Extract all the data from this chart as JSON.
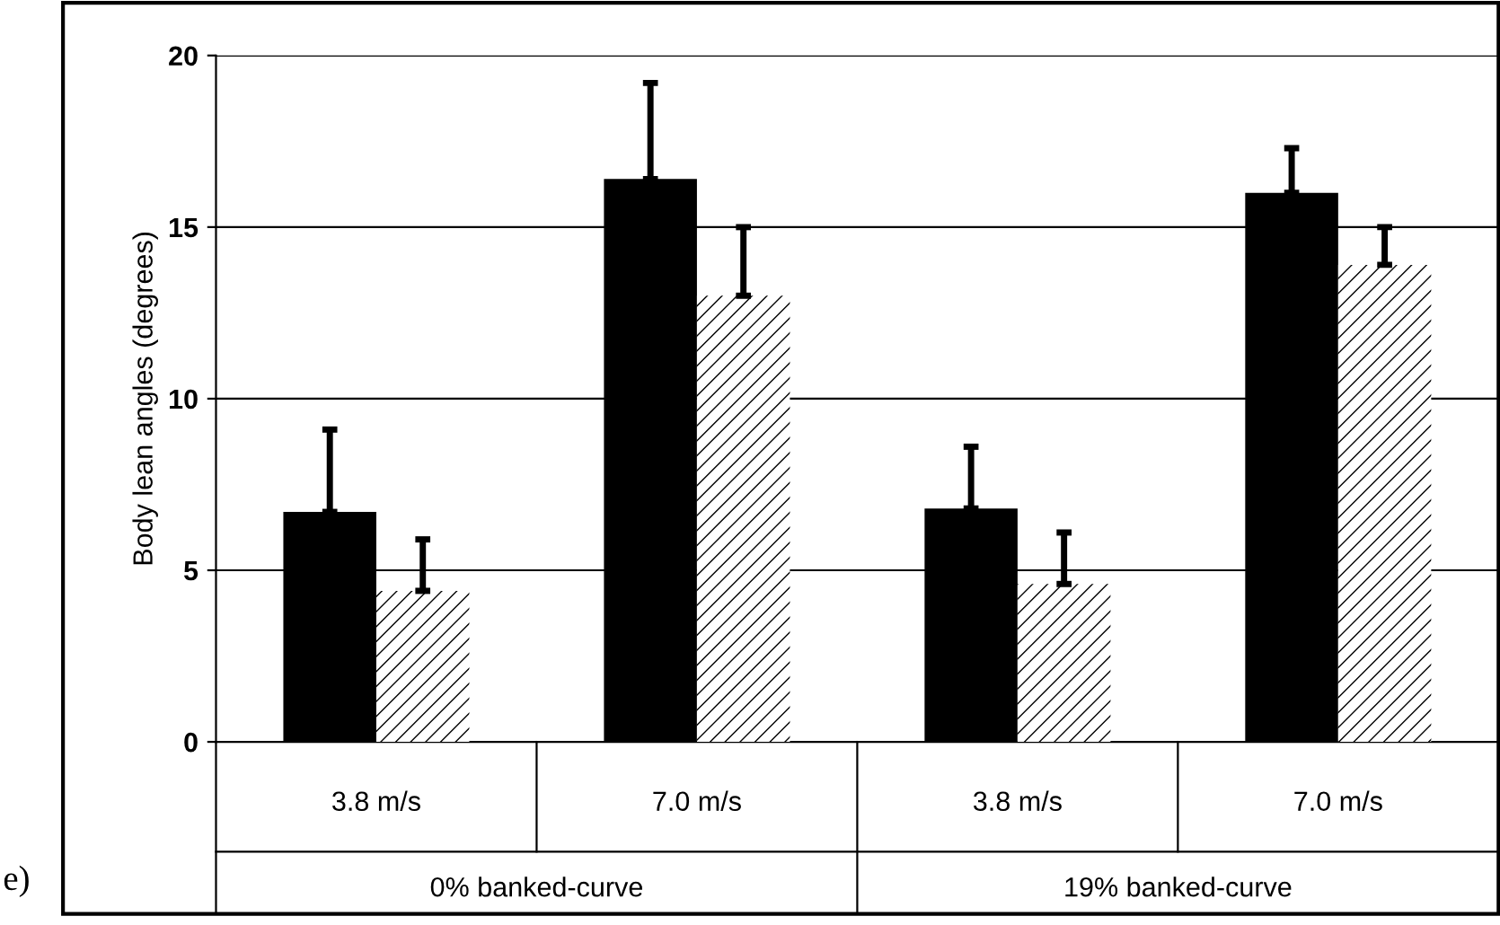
{
  "chart_data": {
    "type": "bar",
    "ylabel": "Body lean angles (degrees)",
    "categories": [
      "3.8 m/s",
      "7.0 m/s",
      "3.8 m/s",
      "7.0 m/s"
    ],
    "series": [
      {
        "color": "#000000",
        "values": [
          6.7,
          16.4,
          6.8,
          16.0
        ],
        "errors": [
          [
            6.7,
            9.1
          ],
          [
            16.4,
            19.2
          ],
          [
            6.8,
            8.6
          ],
          [
            16.0,
            17.3
          ]
        ]
      },
      {
        "color": "#ffffff",
        "values": [
          4.4,
          13.0,
          4.6,
          13.9
        ],
        "errors": [
          [
            4.4,
            5.9
          ],
          [
            13.0,
            15.0
          ],
          [
            4.6,
            6.1
          ],
          [
            13.9,
            15.0
          ]
        ]
      }
    ],
    "annotations": [
      "0% banked-curve",
      "19% banked-curve",
      "e)"
    ],
    "ylim": [
      0,
      20
    ],
    "yticks": [
      0,
      5,
      10,
      15,
      20
    ],
    "grid": "y",
    "legend": false
  }
}
